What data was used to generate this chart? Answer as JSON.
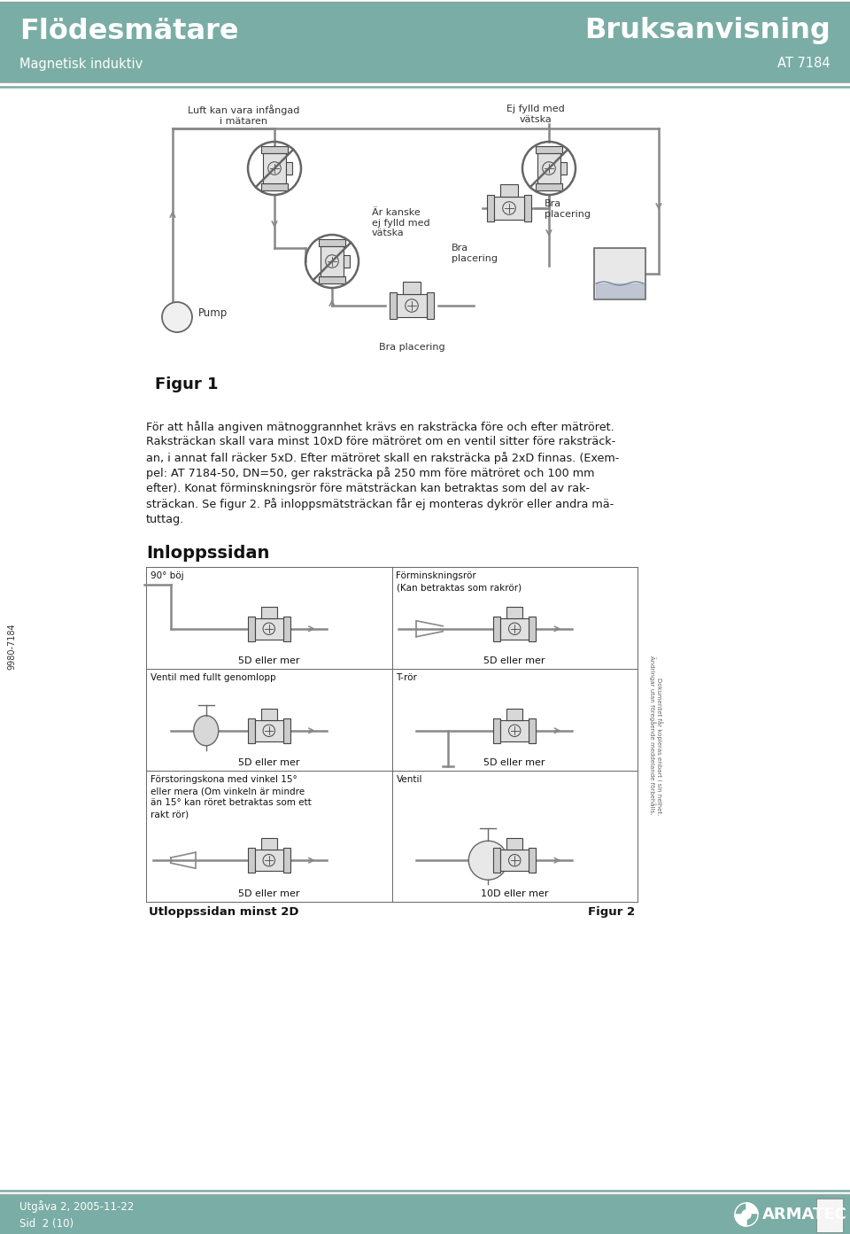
{
  "header_color": "#7aada5",
  "header_text_color": "#ffffff",
  "header_title_left": "Flödesmätare",
  "header_subtitle_left": "Magnetisk induktiv",
  "header_title_right": "Bruksanvisning",
  "header_subtitle_right": "AT 7184",
  "footer_color": "#7aada5",
  "footer_text_color": "#ffffff",
  "footer_left_line1": "Utgåva 2, 2005-11-22",
  "footer_left_line2": "Sid  2 (10)",
  "footer_right": "ARMATEC",
  "sidebar_text": "9980-7184",
  "background_color": "#ffffff",
  "body_text_color": "#1a1a1a",
  "main_paragraph_lines": [
    "För att hålla angiven mätnoggrannhet krävs en raksträcka före och efter mätröret.",
    "Raksträckan skall vara minst 10xD före mätröret om en ventil sitter före raksträck-",
    "an, i annat fall räcker 5xD. Efter mätröret skall en raksträcka på 2xD finnas. (Exem-",
    "pel: AT 7184-50, DN=50, ger raksträcka på 250 mm före mätröret och 100 mm",
    "efter). Konat förminskningsrör före mätsträckan kan betraktas som del av rak-",
    "sträckan. Se figur 2. På inloppsmätsträckan får ej monteras dykrör eller andra mä-",
    "tuttag."
  ],
  "inloppssidan_title": "Inloppssidan",
  "fig1_label": "Figur 1",
  "fig2_label": "Figur 2",
  "utloppssidan_label": "Utloppssidan minst 2D",
  "cell_labels": [
    [
      "90° böj",
      "Förminskningsrör\n(Kan betraktas som rakrör)"
    ],
    [
      "Ventil med fullt genomlopp",
      "T-rör"
    ],
    [
      "Förstoringskona med vinkel 15°\neller mera (Om vinkeln är mindre\nän 15° kan röret betraktas som ett\nrakt rör)",
      "Ventil"
    ]
  ],
  "cell_sublabels": [
    [
      "5D eller mer",
      "5D eller mer"
    ],
    [
      "5D eller mer",
      "5D eller mer"
    ],
    [
      "5D eller mer",
      "10D eller mer"
    ]
  ],
  "teal_color": "#7aada5",
  "pipe_color": "#888888",
  "dark_color": "#444444"
}
